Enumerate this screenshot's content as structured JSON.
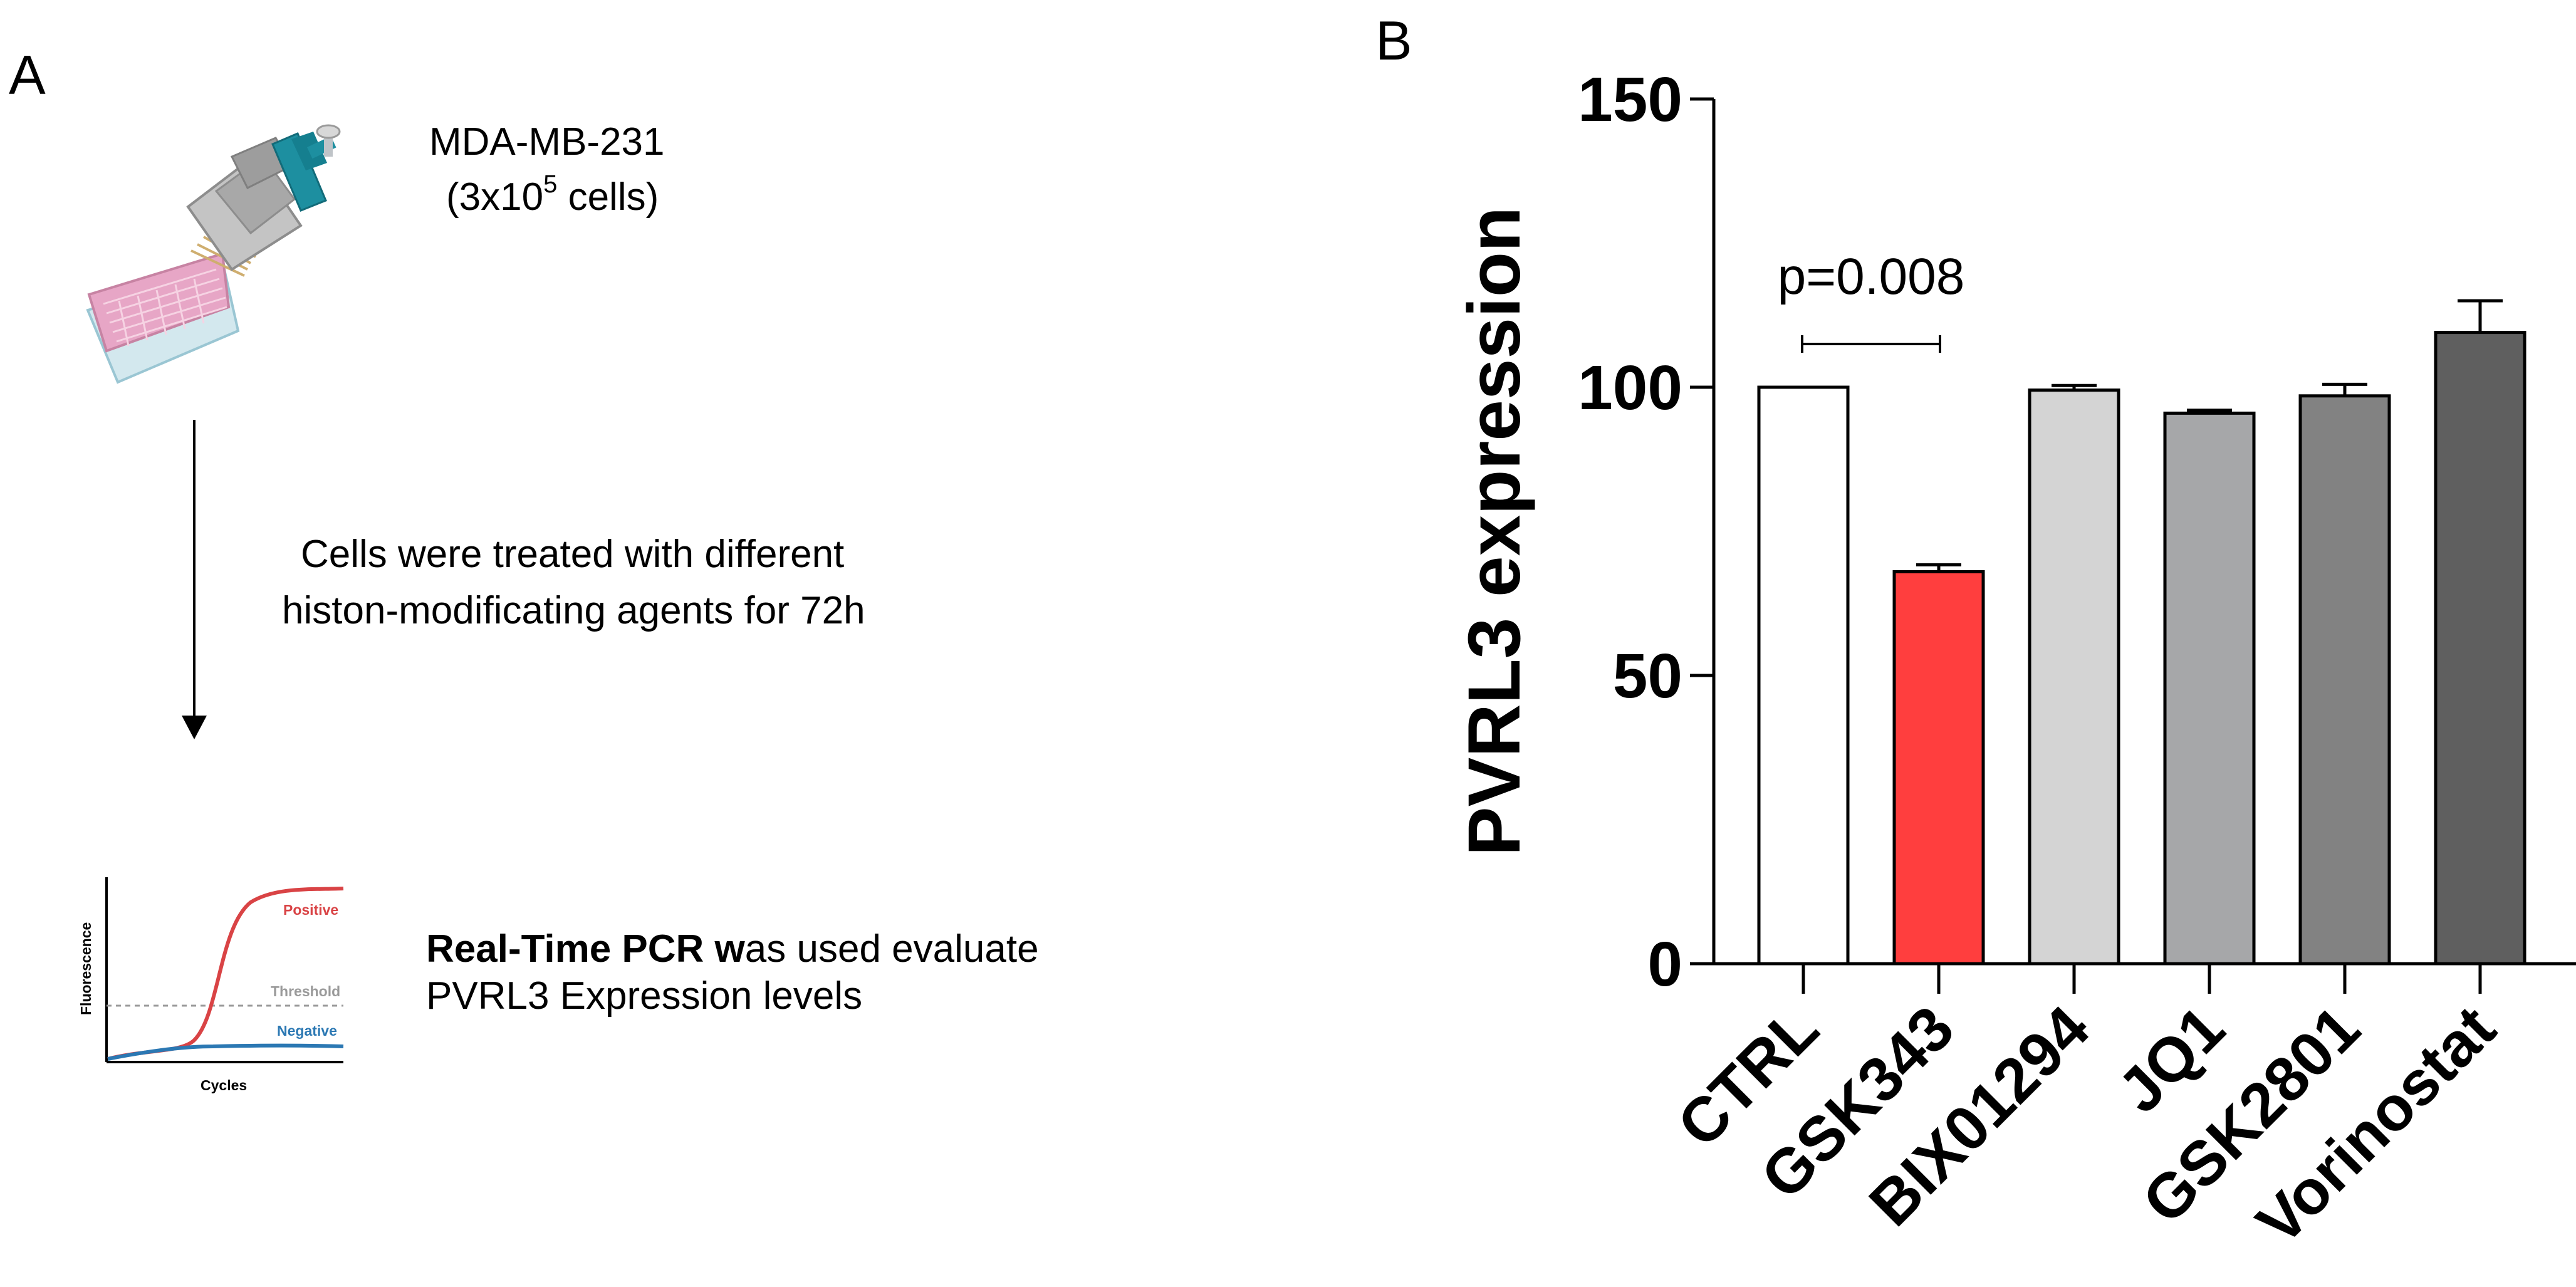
{
  "panels": {
    "a_label": "A",
    "b_label": "B"
  },
  "protocol": {
    "cell_line": "MDA-MB-231",
    "cells_open": "(3x10",
    "cells_exponent": "5",
    "cells_close": " cells)",
    "treatment_line1": "Cells were treated with different",
    "treatment_line2": "histon-modificating agents for 72h",
    "pcr_bold": "Real-Time PCR w",
    "pcr_rest": "as used evaluate",
    "pcr_line2": "PVRL3 Expression levels"
  },
  "pcr_plot": {
    "ylabel": "Fluorescence",
    "xlabel": "Cycles",
    "positive_label": "Positive",
    "threshold_label": "Threshold",
    "negative_label": "Negative"
  },
  "colors": {
    "positive": "#d94345",
    "negative": "#2b78b3",
    "threshold": "#9a9a9a",
    "pipette_teal": "#1d8fa0",
    "plate_pink": "#e7a6c6"
  },
  "icons": {
    "pipette": "multichannel-pipette-icon",
    "plate": "well-plate-icon",
    "arrow": "down-arrow-icon"
  },
  "chart_data": {
    "type": "bar",
    "title": "",
    "xlabel": "",
    "ylabel": "PVRL3 expression",
    "ylim": [
      0,
      150
    ],
    "yticks": [
      0,
      50,
      100,
      150
    ],
    "categories": [
      "CTRL",
      "GSK343",
      "BIX01294",
      "JQ1",
      "GSK2801",
      "Vorinostat"
    ],
    "values": [
      100,
      68,
      99.5,
      95.5,
      98.5,
      109.5
    ],
    "errors": [
      0,
      1.2,
      0.8,
      0.5,
      2.0,
      5.5
    ],
    "bar_colors": [
      "#ffffff",
      "#ff3e3e",
      "#d4d4d4",
      "#a6a7a9",
      "#828282",
      "#5f5f5f"
    ],
    "annotation": {
      "text": "p=0.008",
      "from_category": "CTRL",
      "to_category": "GSK343",
      "y_value": 107.5
    },
    "grid": false,
    "legend": "none"
  }
}
